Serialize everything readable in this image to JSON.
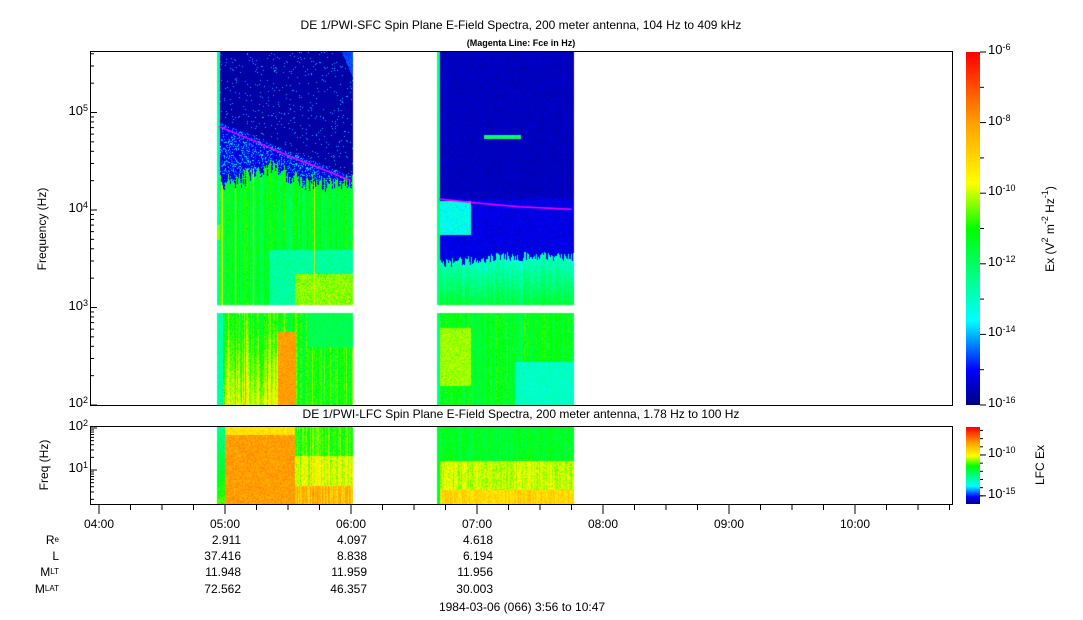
{
  "chart_data": [
    {
      "type": "heatmap",
      "title": "DE 1/PWI-SFC  Spin Plane E-Field Spectra, 200 meter antenna, 104 Hz to 409 kHz",
      "subtitle": "(Magenta Line: Fce in Hz)",
      "ylabel": "Frequency (Hz)",
      "yscale": "log",
      "ylim": [
        100,
        409000
      ],
      "yticks": [
        {
          "base": "10",
          "exp": "2"
        },
        {
          "base": "10",
          "exp": "3"
        },
        {
          "base": "10",
          "exp": "4"
        },
        {
          "base": "10",
          "exp": "5"
        }
      ],
      "xlim": [
        "03:56",
        "10:47"
      ],
      "data_segments": [
        [
          "04:56",
          "06:01"
        ],
        [
          "06:41",
          "07:46"
        ]
      ],
      "data_gap_hz": [
        900,
        1050
      ],
      "colorbar": {
        "label_main": "Ex (V",
        "label_full": "Ex (V2 m-2 Hz-1)",
        "scale": "log",
        "range": [
          1e-16,
          1e-06
        ],
        "ticks": [
          {
            "base": "10",
            "exp": "-6"
          },
          {
            "base": "10",
            "exp": "-8"
          },
          {
            "base": "10",
            "exp": "-10"
          },
          {
            "base": "10",
            "exp": "-12"
          },
          {
            "base": "10",
            "exp": "-14"
          },
          {
            "base": "10",
            "exp": "-16"
          }
        ],
        "colormap": "rainbow",
        "colors": [
          "#000080",
          "#0000ff",
          "#00ffff",
          "#00ff80",
          "#00ff00",
          "#ffff00",
          "#ffa000",
          "#ff0000"
        ]
      },
      "fce_line": {
        "color": "#ff00ff",
        "points": [
          [
            "04:57",
            72000
          ],
          [
            "05:15",
            50000
          ],
          [
            "05:30",
            36000
          ],
          [
            "05:45",
            27000
          ],
          [
            "06:00",
            20000
          ],
          [
            "06:42",
            13000
          ],
          [
            "07:00",
            11800
          ],
          [
            "07:20",
            10800
          ],
          [
            "07:45",
            10200
          ]
        ]
      }
    },
    {
      "type": "heatmap",
      "title": "DE 1/PWI-LFC  Spin Plane E-Field Spectra, 200 meter antenna, 1.78 Hz to 100 Hz",
      "ylabel": "Freq (Hz)",
      "yscale": "log",
      "ylim": [
        1.78,
        100
      ],
      "yticks": [
        {
          "base": "10",
          "exp": "1"
        },
        {
          "base": "10",
          "exp": "2"
        }
      ],
      "colorbar": {
        "label": "LFC Ex",
        "scale": "log",
        "ticks": [
          {
            "base": "10",
            "exp": "-10"
          },
          {
            "base": "10",
            "exp": "-15"
          }
        ]
      }
    }
  ],
  "time_axis": {
    "labels": [
      "04:00",
      "05:00",
      "06:00",
      "07:00",
      "08:00",
      "09:00",
      "10:00"
    ]
  },
  "ephemeris": {
    "rows": [
      {
        "label": "R",
        "sub": "e",
        "values": [
          "2.911",
          "4.097",
          "4.618"
        ]
      },
      {
        "label": "L",
        "sub": "",
        "values": [
          "37.416",
          "8.838",
          "6.194"
        ]
      },
      {
        "label": "M",
        "sub": "LT",
        "values": [
          "11.948",
          "11.959",
          "11.956"
        ]
      },
      {
        "label": "M",
        "sub": "LAT",
        "values": [
          "72.562",
          "46.357",
          "30.003"
        ]
      }
    ],
    "date_range": "1984-03-06 (066) 3:56 to 10:47"
  }
}
